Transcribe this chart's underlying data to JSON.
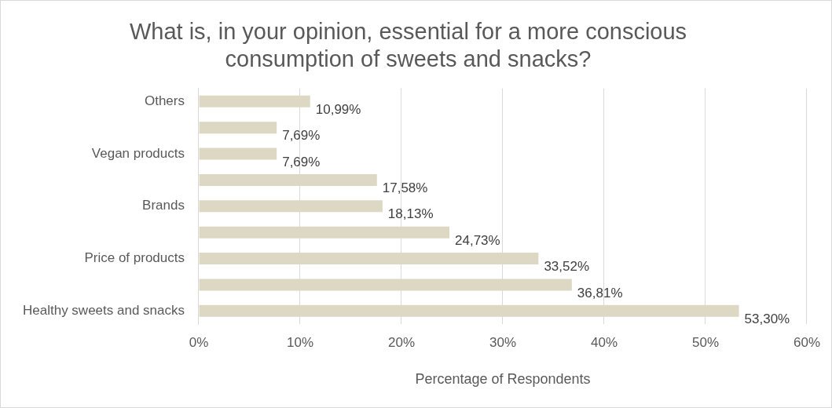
{
  "chart_data": {
    "type": "bar",
    "orientation": "horizontal",
    "title": "What is, in your opinion, essential for a more conscious consumption of sweets and snacks?",
    "xlabel": "Percentage of Respondents",
    "categories": [
      "Others",
      null,
      "Vegan products",
      null,
      "Brands",
      null,
      "Price of products",
      null,
      "Healthy sweets and snacks"
    ],
    "values": [
      10.99,
      7.69,
      7.69,
      17.58,
      18.13,
      24.73,
      33.52,
      36.81,
      53.3
    ],
    "value_labels": [
      "10,99%",
      "7,69%",
      "7,69%",
      "17,58%",
      "18,13%",
      "24,73%",
      "33,52%",
      "36,81%",
      "53,30%"
    ],
    "color": "#ddd8c4",
    "xlim": [
      0,
      60
    ],
    "xticks": [
      {
        "value": 0,
        "label": "0%"
      },
      {
        "value": 10,
        "label": "10%"
      },
      {
        "value": 20,
        "label": "20%"
      },
      {
        "value": 30,
        "label": "30%"
      },
      {
        "value": 40,
        "label": "40%"
      },
      {
        "value": 50,
        "label": "50%"
      },
      {
        "value": 60,
        "label": "60%"
      }
    ],
    "grid": "x",
    "legend": false
  }
}
